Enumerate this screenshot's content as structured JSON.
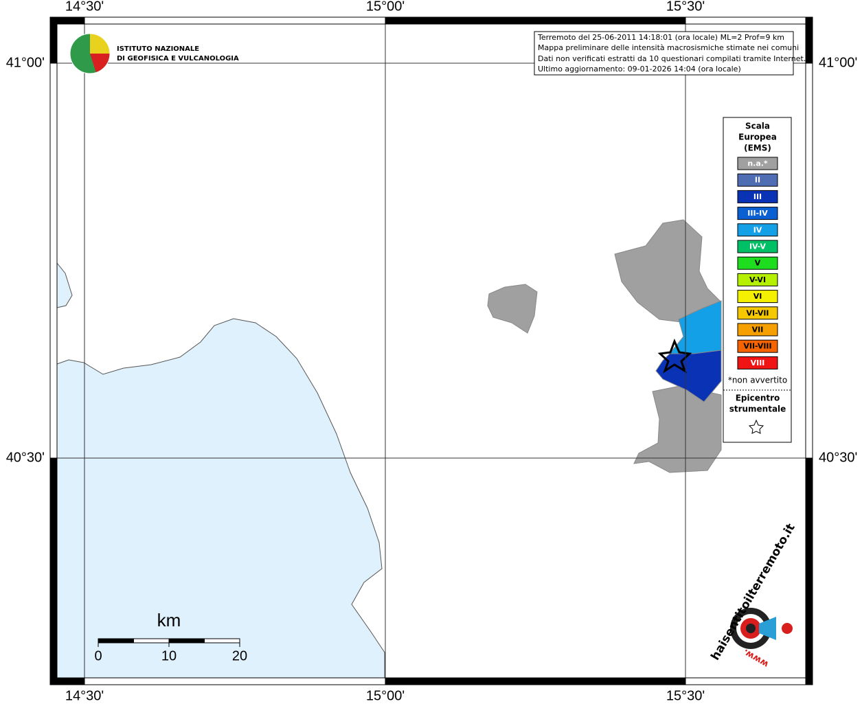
{
  "logo": {
    "line1": "ISTITUTO NAZIONALE",
    "line2": "DI GEOFISICA E VULCANOLOGIA"
  },
  "info_box": {
    "lines": [
      "Terremoto del 25-06-2011 14:18:01 (ora locale) ML=2 Prof=9 km",
      "Mappa preliminare delle intensità macrosismiche stimate nei comuni",
      "Dati non verificati estratti da 10 questionari compilati tramite Internet.",
      "Ultimo aggiornamento: 09-01-2026 14:04 (ora locale)"
    ]
  },
  "axes": {
    "lon_labels": [
      "14°30'",
      "15°00'",
      "15°30'"
    ],
    "lat_labels": [
      "41°00'",
      "40°30'"
    ]
  },
  "legend": {
    "title": [
      "Scala",
      "Europea",
      "(EMS)"
    ],
    "items": [
      {
        "label": "n.a.*",
        "color": "#a0a0a0"
      },
      {
        "label": "II",
        "color": "#4f6db3"
      },
      {
        "label": "III",
        "color": "#0a32b4"
      },
      {
        "label": "III-IV",
        "color": "#0a5fd2"
      },
      {
        "label": "IV",
        "color": "#14a0e6"
      },
      {
        "label": "IV-V",
        "color": "#00c066"
      },
      {
        "label": "V",
        "color": "#1edc1e"
      },
      {
        "label": "V-VI",
        "color": "#b4f000"
      },
      {
        "label": "VI",
        "color": "#f5f000"
      },
      {
        "label": "VI-VII",
        "color": "#f5c800"
      },
      {
        "label": "VII",
        "color": "#f5a000"
      },
      {
        "label": "VII-VIII",
        "color": "#f56400"
      },
      {
        "label": "VIII",
        "color": "#f01414"
      }
    ],
    "note": "*non avvertito",
    "epicenter_title": [
      "Epicentro",
      "strumentale"
    ]
  },
  "scale_bar": {
    "unit": "km",
    "ticks": [
      "0",
      "10",
      "20"
    ]
  },
  "watermark": {
    "text": "haisentitoilterremoto.it",
    "www": "www."
  }
}
